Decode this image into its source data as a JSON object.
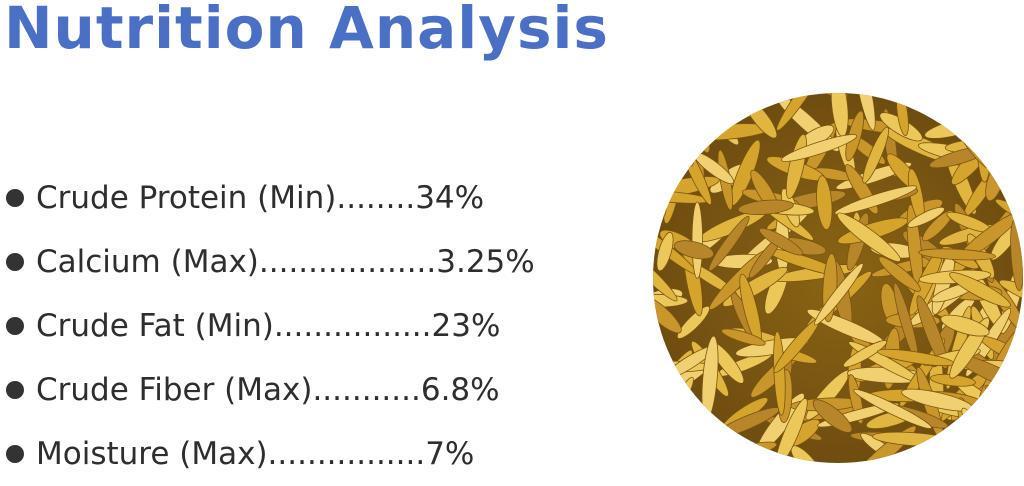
{
  "header": {
    "title": "Nutrition Analysis"
  },
  "items": [
    "Crude Protein (Min)........34%",
    "Calcium (Max)..................3.25%",
    "Crude Fat (Min)................23%",
    "Crude Fiber (Max)...........6.8%",
    "Moisture (Max)................7%"
  ]
}
